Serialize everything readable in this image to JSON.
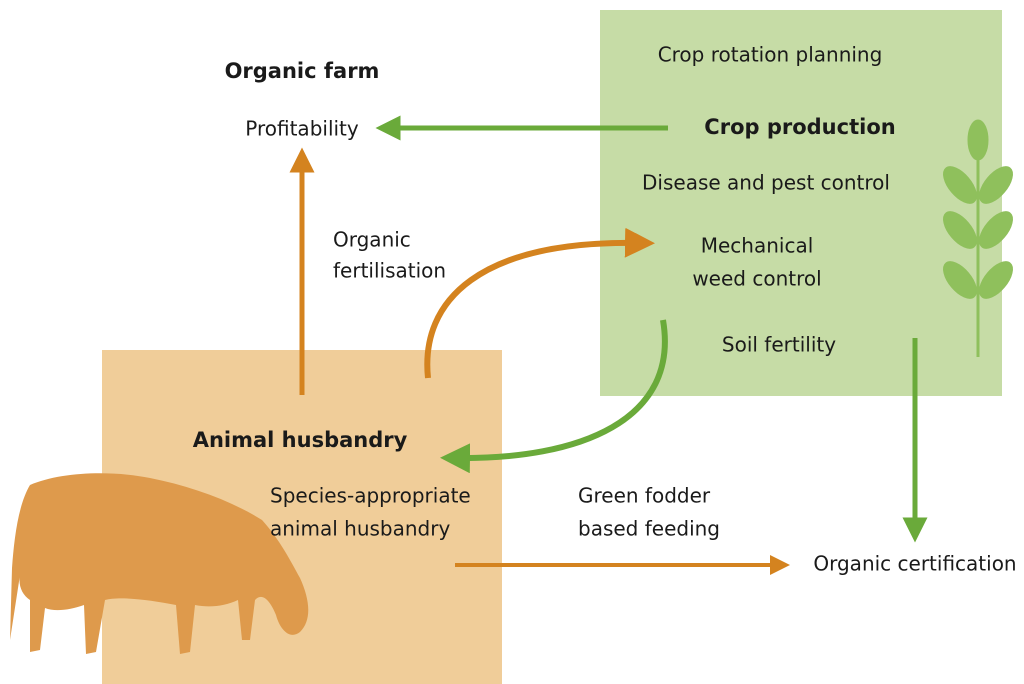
{
  "farm": {
    "title": "Organic farm",
    "outcome": "Profitability"
  },
  "crop_production": {
    "title": "Crop production",
    "items": [
      "Crop rotation planning",
      "Disease and pest control",
      [
        "Mechanical",
        "weed control"
      ],
      "Soil fertility"
    ]
  },
  "animal_husbandry": {
    "title": "Animal husbandry",
    "items": [
      [
        "Species-appropriate",
        "animal husbandry"
      ]
    ]
  },
  "links": {
    "organic_fertilisation": [
      "Organic",
      "fertilisation"
    ],
    "green_fodder": [
      "Green fodder",
      "based feeding"
    ]
  },
  "certification": "Organic certification"
}
